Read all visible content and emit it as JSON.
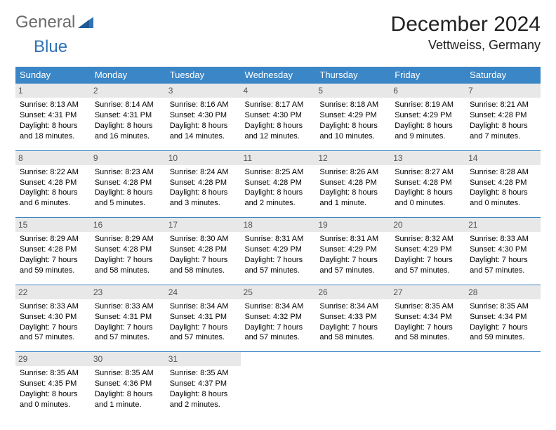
{
  "logo": {
    "part1": "General",
    "part2": "Blue"
  },
  "title": "December 2024",
  "location": "Vettweiss, Germany",
  "colors": {
    "header_bg": "#3b86c6",
    "header_text": "#ffffff",
    "daynum_bg": "#e8e8e8",
    "daynum_text": "#555555",
    "rule": "#3b86c6",
    "logo_gray": "#6a6a6a",
    "logo_blue": "#2f72b6"
  },
  "weekdays": [
    "Sunday",
    "Monday",
    "Tuesday",
    "Wednesday",
    "Thursday",
    "Friday",
    "Saturday"
  ],
  "weeks": [
    [
      {
        "day": "1",
        "sunrise": "Sunrise: 8:13 AM",
        "sunset": "Sunset: 4:31 PM",
        "daylight": "Daylight: 8 hours and 18 minutes."
      },
      {
        "day": "2",
        "sunrise": "Sunrise: 8:14 AM",
        "sunset": "Sunset: 4:31 PM",
        "daylight": "Daylight: 8 hours and 16 minutes."
      },
      {
        "day": "3",
        "sunrise": "Sunrise: 8:16 AM",
        "sunset": "Sunset: 4:30 PM",
        "daylight": "Daylight: 8 hours and 14 minutes."
      },
      {
        "day": "4",
        "sunrise": "Sunrise: 8:17 AM",
        "sunset": "Sunset: 4:30 PM",
        "daylight": "Daylight: 8 hours and 12 minutes."
      },
      {
        "day": "5",
        "sunrise": "Sunrise: 8:18 AM",
        "sunset": "Sunset: 4:29 PM",
        "daylight": "Daylight: 8 hours and 10 minutes."
      },
      {
        "day": "6",
        "sunrise": "Sunrise: 8:19 AM",
        "sunset": "Sunset: 4:29 PM",
        "daylight": "Daylight: 8 hours and 9 minutes."
      },
      {
        "day": "7",
        "sunrise": "Sunrise: 8:21 AM",
        "sunset": "Sunset: 4:28 PM",
        "daylight": "Daylight: 8 hours and 7 minutes."
      }
    ],
    [
      {
        "day": "8",
        "sunrise": "Sunrise: 8:22 AM",
        "sunset": "Sunset: 4:28 PM",
        "daylight": "Daylight: 8 hours and 6 minutes."
      },
      {
        "day": "9",
        "sunrise": "Sunrise: 8:23 AM",
        "sunset": "Sunset: 4:28 PM",
        "daylight": "Daylight: 8 hours and 5 minutes."
      },
      {
        "day": "10",
        "sunrise": "Sunrise: 8:24 AM",
        "sunset": "Sunset: 4:28 PM",
        "daylight": "Daylight: 8 hours and 3 minutes."
      },
      {
        "day": "11",
        "sunrise": "Sunrise: 8:25 AM",
        "sunset": "Sunset: 4:28 PM",
        "daylight": "Daylight: 8 hours and 2 minutes."
      },
      {
        "day": "12",
        "sunrise": "Sunrise: 8:26 AM",
        "sunset": "Sunset: 4:28 PM",
        "daylight": "Daylight: 8 hours and 1 minute."
      },
      {
        "day": "13",
        "sunrise": "Sunrise: 8:27 AM",
        "sunset": "Sunset: 4:28 PM",
        "daylight": "Daylight: 8 hours and 0 minutes."
      },
      {
        "day": "14",
        "sunrise": "Sunrise: 8:28 AM",
        "sunset": "Sunset: 4:28 PM",
        "daylight": "Daylight: 8 hours and 0 minutes."
      }
    ],
    [
      {
        "day": "15",
        "sunrise": "Sunrise: 8:29 AM",
        "sunset": "Sunset: 4:28 PM",
        "daylight": "Daylight: 7 hours and 59 minutes."
      },
      {
        "day": "16",
        "sunrise": "Sunrise: 8:29 AM",
        "sunset": "Sunset: 4:28 PM",
        "daylight": "Daylight: 7 hours and 58 minutes."
      },
      {
        "day": "17",
        "sunrise": "Sunrise: 8:30 AM",
        "sunset": "Sunset: 4:28 PM",
        "daylight": "Daylight: 7 hours and 58 minutes."
      },
      {
        "day": "18",
        "sunrise": "Sunrise: 8:31 AM",
        "sunset": "Sunset: 4:29 PM",
        "daylight": "Daylight: 7 hours and 57 minutes."
      },
      {
        "day": "19",
        "sunrise": "Sunrise: 8:31 AM",
        "sunset": "Sunset: 4:29 PM",
        "daylight": "Daylight: 7 hours and 57 minutes."
      },
      {
        "day": "20",
        "sunrise": "Sunrise: 8:32 AM",
        "sunset": "Sunset: 4:29 PM",
        "daylight": "Daylight: 7 hours and 57 minutes."
      },
      {
        "day": "21",
        "sunrise": "Sunrise: 8:33 AM",
        "sunset": "Sunset: 4:30 PM",
        "daylight": "Daylight: 7 hours and 57 minutes."
      }
    ],
    [
      {
        "day": "22",
        "sunrise": "Sunrise: 8:33 AM",
        "sunset": "Sunset: 4:30 PM",
        "daylight": "Daylight: 7 hours and 57 minutes."
      },
      {
        "day": "23",
        "sunrise": "Sunrise: 8:33 AM",
        "sunset": "Sunset: 4:31 PM",
        "daylight": "Daylight: 7 hours and 57 minutes."
      },
      {
        "day": "24",
        "sunrise": "Sunrise: 8:34 AM",
        "sunset": "Sunset: 4:31 PM",
        "daylight": "Daylight: 7 hours and 57 minutes."
      },
      {
        "day": "25",
        "sunrise": "Sunrise: 8:34 AM",
        "sunset": "Sunset: 4:32 PM",
        "daylight": "Daylight: 7 hours and 57 minutes."
      },
      {
        "day": "26",
        "sunrise": "Sunrise: 8:34 AM",
        "sunset": "Sunset: 4:33 PM",
        "daylight": "Daylight: 7 hours and 58 minutes."
      },
      {
        "day": "27",
        "sunrise": "Sunrise: 8:35 AM",
        "sunset": "Sunset: 4:34 PM",
        "daylight": "Daylight: 7 hours and 58 minutes."
      },
      {
        "day": "28",
        "sunrise": "Sunrise: 8:35 AM",
        "sunset": "Sunset: 4:34 PM",
        "daylight": "Daylight: 7 hours and 59 minutes."
      }
    ],
    [
      {
        "day": "29",
        "sunrise": "Sunrise: 8:35 AM",
        "sunset": "Sunset: 4:35 PM",
        "daylight": "Daylight: 8 hours and 0 minutes."
      },
      {
        "day": "30",
        "sunrise": "Sunrise: 8:35 AM",
        "sunset": "Sunset: 4:36 PM",
        "daylight": "Daylight: 8 hours and 1 minute."
      },
      {
        "day": "31",
        "sunrise": "Sunrise: 8:35 AM",
        "sunset": "Sunset: 4:37 PM",
        "daylight": "Daylight: 8 hours and 2 minutes."
      },
      null,
      null,
      null,
      null
    ]
  ]
}
